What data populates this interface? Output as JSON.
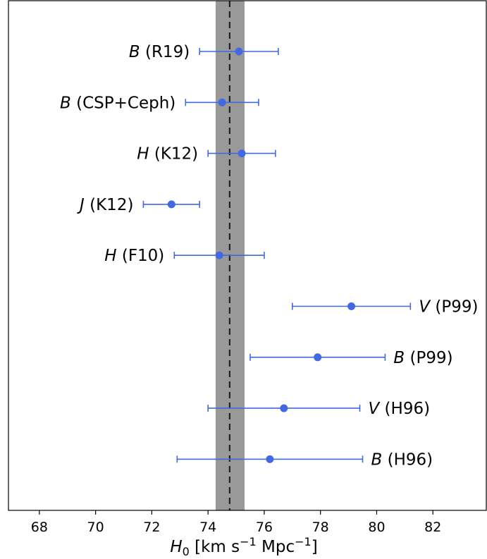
{
  "chart_data": {
    "type": "scatter",
    "xlabel": {
      "symbol": "H",
      "subscript": "0",
      "text1": " [km s",
      "sup1": "−1",
      "text2": " Mpc",
      "sup2": "−1",
      "text3": "]"
    },
    "xlim": [
      66.9,
      83.9
    ],
    "xticks": [
      68,
      70,
      72,
      74,
      76,
      78,
      80,
      82
    ],
    "grid": false,
    "reference": {
      "value": 74.77,
      "band_low": 74.27,
      "band_high": 75.3
    },
    "points": [
      {
        "band": "B",
        "source": "(R19)",
        "label_side": "left",
        "x": 75.1,
        "err_low": 73.7,
        "err_high": 76.5
      },
      {
        "band": "B",
        "source": "(CSP+Ceph)",
        "label_side": "left",
        "x": 74.5,
        "err_low": 73.2,
        "err_high": 75.8
      },
      {
        "band": "H",
        "source": "(K12)",
        "label_side": "left",
        "x": 75.2,
        "err_low": 74.0,
        "err_high": 76.4
      },
      {
        "band": "J",
        "source": "(K12)",
        "label_side": "left",
        "x": 72.7,
        "err_low": 71.7,
        "err_high": 73.7
      },
      {
        "band": "H",
        "source": "(F10)",
        "label_side": "left",
        "x": 74.4,
        "err_low": 72.8,
        "err_high": 76.0
      },
      {
        "band": "V",
        "source": "(P99)",
        "label_side": "right",
        "x": 79.1,
        "err_low": 77.0,
        "err_high": 81.2
      },
      {
        "band": "B",
        "source": "(P99)",
        "label_side": "right",
        "x": 77.9,
        "err_low": 75.5,
        "err_high": 80.3
      },
      {
        "band": "V",
        "source": "(H96)",
        "label_side": "right",
        "x": 76.7,
        "err_low": 74.0,
        "err_high": 79.4
      },
      {
        "band": "B",
        "source": "(H96)",
        "label_side": "right",
        "x": 76.2,
        "err_low": 72.9,
        "err_high": 79.5
      }
    ],
    "colors": {
      "points": "#4169e1",
      "band": "#999999",
      "reference_line": "#222222"
    }
  }
}
